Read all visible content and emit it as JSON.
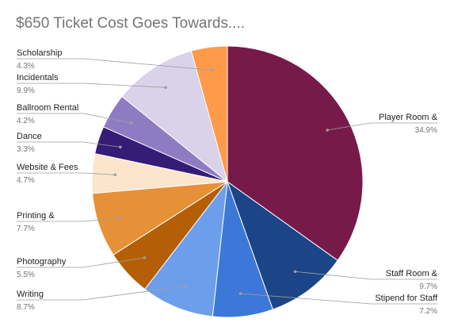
{
  "chart_data": {
    "type": "pie",
    "title": "$650 Ticket Cost Goes Towards....",
    "slices": [
      {
        "label": "Player Room &",
        "percent_label": "34.9%",
        "value": 34.9,
        "color": "#781A49"
      },
      {
        "label": "Staff Room &",
        "percent_label": "9.7%",
        "value": 9.7,
        "color": "#1C4587"
      },
      {
        "label": "Stipend for Staff",
        "percent_label": "7.2%",
        "value": 7.2,
        "color": "#3C78D8"
      },
      {
        "label": "Writing",
        "percent_label": "8.7%",
        "value": 8.7,
        "color": "#6D9EEB"
      },
      {
        "label": "Photography",
        "percent_label": "5.5%",
        "value": 5.5,
        "color": "#B45F06"
      },
      {
        "label": "Printing &",
        "percent_label": "7.7%",
        "value": 7.7,
        "color": "#E69138"
      },
      {
        "label": "Website & Fees",
        "percent_label": "4.7%",
        "value": 4.7,
        "color": "#FCE5CD"
      },
      {
        "label": "Dance",
        "percent_label": "3.3%",
        "value": 3.3,
        "color": "#351C75"
      },
      {
        "label": "Ballroom Rental",
        "percent_label": "4.2%",
        "value": 4.2,
        "color": "#8E7CC3"
      },
      {
        "label": "Incidentals",
        "percent_label": "9.9%",
        "value": 9.9,
        "color": "#D9D2E9"
      },
      {
        "label": "Scholarship",
        "percent_label": "4.3%",
        "value": 4.3,
        "color": "#FF9A4A"
      }
    ],
    "legend": "none",
    "label_placement": "outside-with-leader-lines"
  }
}
